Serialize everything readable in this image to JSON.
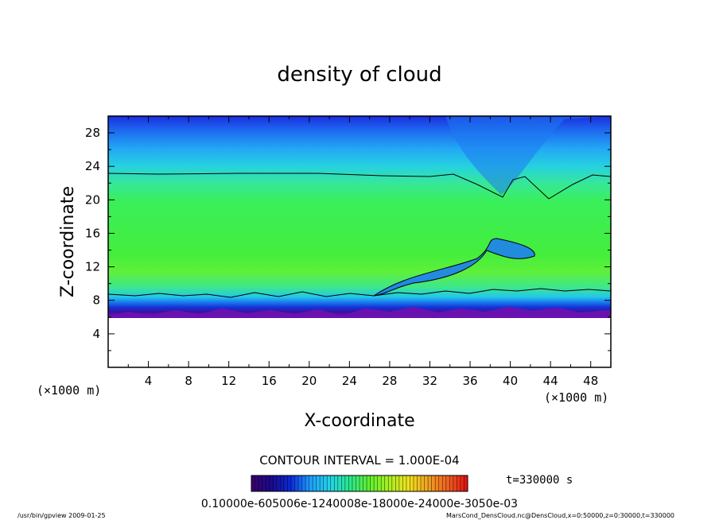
{
  "chart_data": {
    "type": "heatmap",
    "title": "density of cloud",
    "xlabel": "X-coordinate",
    "ylabel": "Z-coordinate",
    "x_unit": "(×1000 m)",
    "y_unit": "(×1000 m)",
    "xlim": [
      0,
      50
    ],
    "ylim": [
      0,
      30
    ],
    "xticks": [
      "4",
      "8",
      "12",
      "16",
      "20",
      "24",
      "28",
      "32",
      "36",
      "40",
      "44",
      "48"
    ],
    "yticks": [
      "4",
      "8",
      "12",
      "16",
      "20",
      "24",
      "28"
    ],
    "contour_interval": "CONTOUR INTERVAL = 1.000E-04",
    "time_label": "t=330000 s",
    "colorbar_labels": "0.10000e-605006e-1240008e-18000e-24000e-3050e-03",
    "colorbar_colors": [
      "#3a006e",
      "#1a0a8c",
      "#0a2ad8",
      "#1ea0ff",
      "#22d4e8",
      "#2ae88c",
      "#5ef030",
      "#a8f020",
      "#f0e020",
      "#f0a020",
      "#f06020",
      "#e01010"
    ],
    "regions": [
      {
        "name": "cloud-layer",
        "description_levels": "green mid-density band between z≈8 and z≈23"
      },
      {
        "name": "upper-layer",
        "description_levels": "blue low-density above z≈23"
      }
    ],
    "contour_upper_z": 23,
    "contour_lower_z": 8.5,
    "cloud_base_z": 6
  },
  "footer": {
    "left": "/usr/bin/gpview   2009-01-25",
    "right": "MarsCond_DensCloud.nc@DensCloud,x=0:50000,z=0:30000,t=330000"
  }
}
